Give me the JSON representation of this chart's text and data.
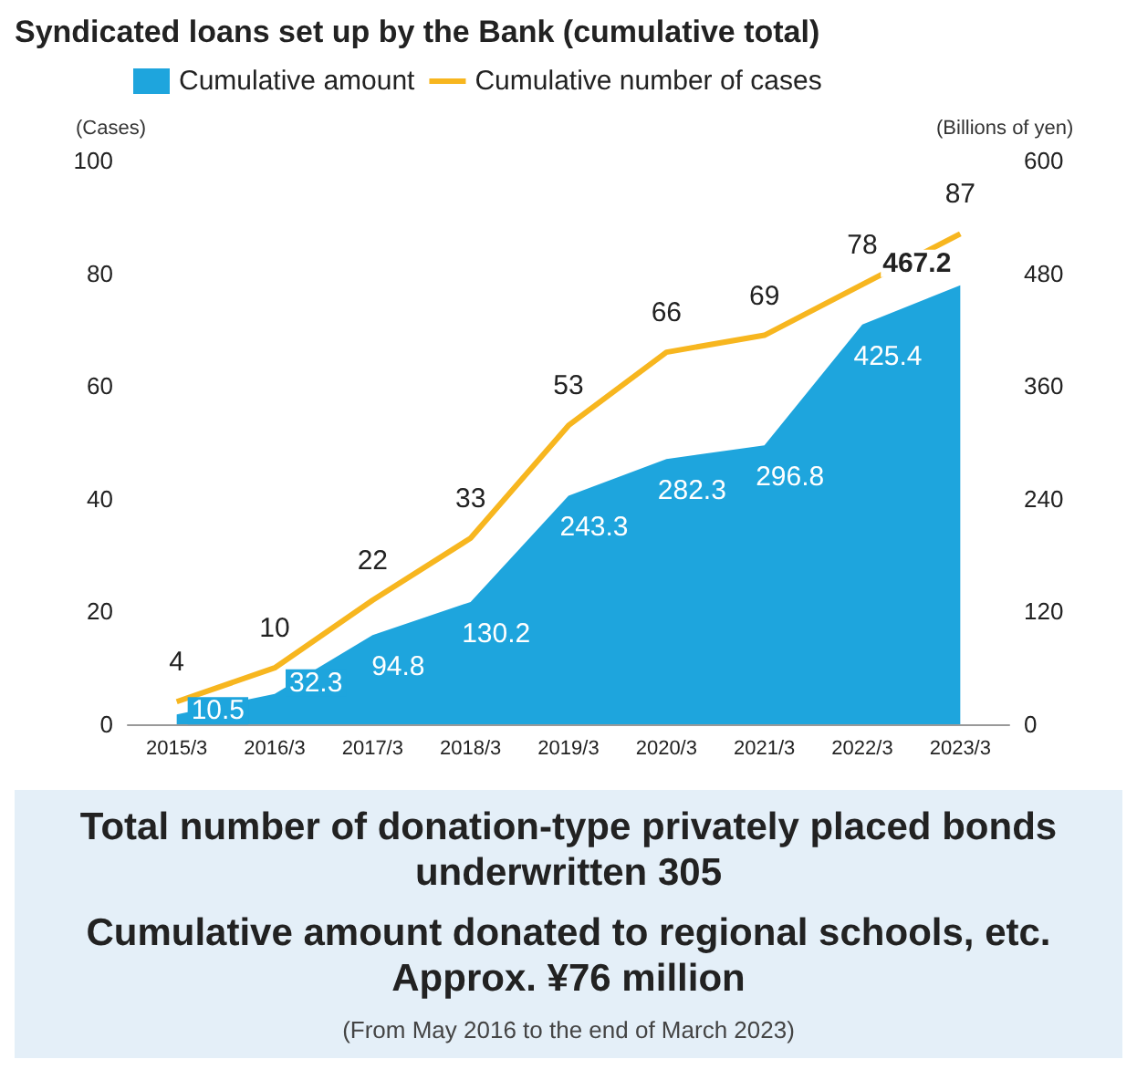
{
  "chart_data": {
    "type": "area",
    "title": "Syndicated loans set up by the Bank (cumulative total)",
    "ylabel": "(Cases)",
    "y2label": "(Billions of yen)",
    "categories": [
      "2015/3",
      "2016/3",
      "2017/3",
      "2018/3",
      "2019/3",
      "2020/3",
      "2021/3",
      "2022/3",
      "2023/3"
    ],
    "series": [
      {
        "name": "Cumulative amount",
        "type": "area",
        "axis": "y2",
        "color": "#1ea5dd",
        "values": [
          10.5,
          32.3,
          94.8,
          130.2,
          243.3,
          282.3,
          296.8,
          425.4,
          467.2
        ]
      },
      {
        "name": "Cumulative number of cases",
        "type": "line",
        "color": "#f7b61f",
        "values": [
          4,
          10,
          22,
          33,
          53,
          66,
          69,
          78,
          87
        ]
      }
    ],
    "ylim": [
      0,
      100
    ],
    "yticks": [
      0,
      20,
      40,
      60,
      80,
      100
    ],
    "y2lim": [
      0,
      600
    ],
    "y2ticks": [
      0,
      120,
      240,
      360,
      480,
      600
    ],
    "legend": "top",
    "grid": false,
    "marker": "none",
    "data_labels": true,
    "annotations": [
      "Total number of donation-type privately placed bonds underwritten 305",
      "Cumulative amount donated to regional schools, etc. Approx. ¥76 million",
      "(From May 2016 to the end of March 2023)"
    ]
  }
}
